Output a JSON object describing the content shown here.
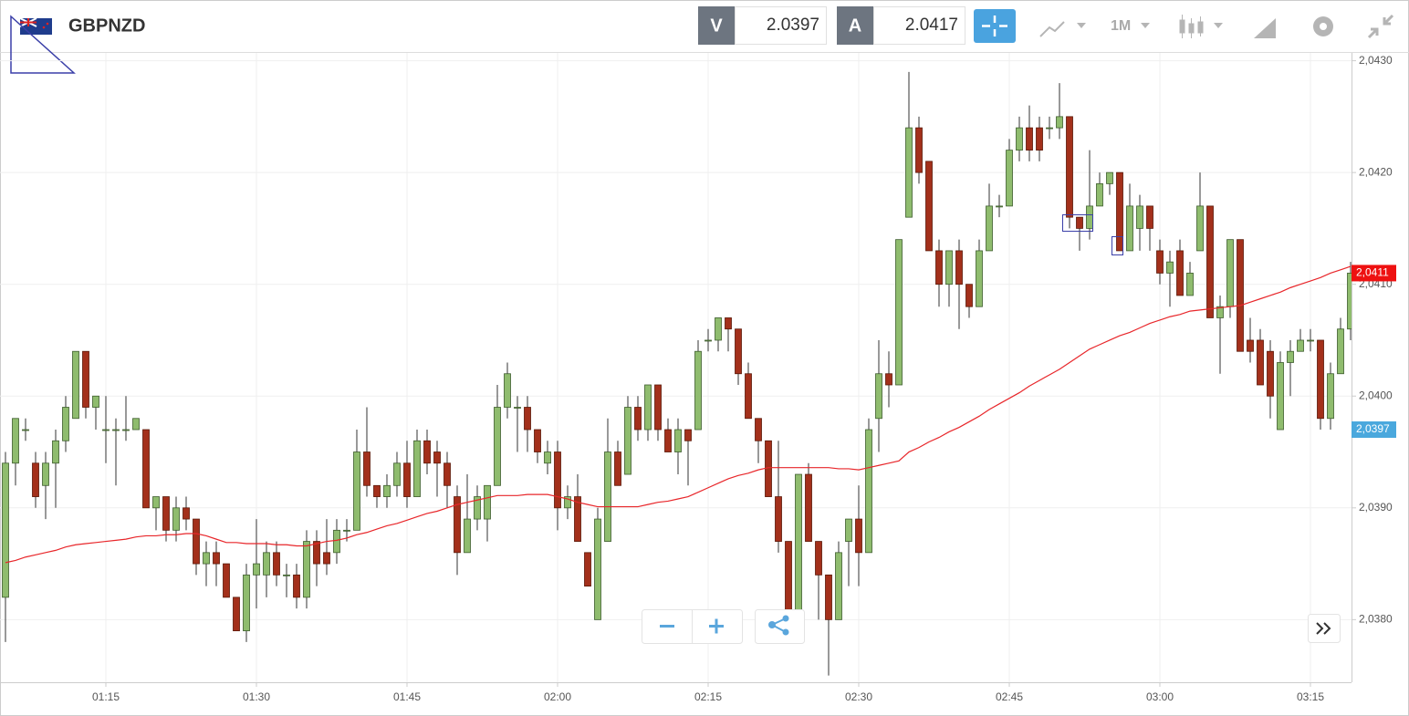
{
  "header": {
    "symbol": "GBPNZD",
    "bid_label": "V",
    "bid": 2.0397,
    "ask_label": "A",
    "ask": 2.0417,
    "timeframe": "1M"
  },
  "chart_data": {
    "type": "candlestick",
    "categories": [
      null,
      null,
      null,
      null,
      null,
      null,
      null,
      null,
      null,
      null,
      "01:15",
      null,
      null,
      null,
      null,
      null,
      null,
      null,
      null,
      null,
      null,
      null,
      null,
      null,
      null,
      "01:30",
      null,
      null,
      null,
      null,
      null,
      null,
      null,
      null,
      null,
      null,
      null,
      null,
      null,
      null,
      "01:45",
      null,
      null,
      null,
      null,
      null,
      null,
      null,
      null,
      null,
      null,
      null,
      null,
      null,
      null,
      "02:00",
      null,
      null,
      null,
      null,
      null,
      null,
      null,
      null,
      null,
      null,
      null,
      null,
      null,
      null,
      "02:15",
      null,
      null,
      null,
      null,
      null,
      null,
      null,
      null,
      null,
      null,
      null,
      null,
      null,
      null,
      "02:30",
      null,
      null,
      null,
      null,
      null,
      null,
      null,
      null,
      null,
      null,
      null,
      null,
      null,
      null,
      "02:45",
      null,
      null,
      null,
      null,
      null,
      null,
      null,
      null,
      null,
      null,
      null,
      null,
      null,
      null,
      "03:00",
      null,
      null,
      null,
      null,
      null,
      null,
      null,
      null,
      null,
      null,
      null,
      null,
      null,
      null,
      "03:15",
      null,
      null,
      null,
      null
    ],
    "open": [
      2.0382,
      2.0394,
      2.0397,
      2.0394,
      2.0392,
      2.0394,
      2.0396,
      2.0398,
      2.0404,
      2.0399,
      2.0397,
      2.0397,
      2.0397,
      2.0397,
      2.0397,
      2.039,
      2.0391,
      2.0388,
      2.039,
      2.0389,
      2.0385,
      2.0386,
      2.0385,
      2.0382,
      2.0379,
      2.0384,
      2.0384,
      2.0386,
      2.0384,
      2.0384,
      2.0382,
      2.0387,
      2.0386,
      2.0386,
      2.0388,
      2.0388,
      2.0395,
      2.0392,
      2.0391,
      2.0392,
      2.0394,
      2.0391,
      2.0396,
      2.0395,
      2.0394,
      2.0391,
      2.0386,
      2.0389,
      2.0389,
      2.0392,
      2.0399,
      2.0399,
      2.0399,
      2.0397,
      2.0394,
      2.0395,
      2.039,
      2.0391,
      2.0386,
      2.038,
      2.0387,
      2.0395,
      2.0393,
      2.0399,
      2.0397,
      2.0401,
      2.0397,
      2.0395,
      2.0397,
      2.0397,
      2.0405,
      2.0405,
      2.0407,
      2.0406,
      2.0402,
      2.0398,
      2.0396,
      2.0391,
      2.0387,
      2.038,
      2.0393,
      2.0387,
      2.0384,
      2.038,
      2.0387,
      2.0389,
      2.0386,
      2.0398,
      2.0402,
      2.0401,
      2.0416,
      2.0424,
      2.0421,
      2.0413,
      2.041,
      2.0413,
      2.041,
      2.0408,
      2.0413,
      2.0417,
      2.0417,
      2.0422,
      2.0424,
      2.0424,
      2.0424,
      2.0424,
      2.0425,
      2.0416,
      2.0415,
      2.0417,
      2.0419,
      2.042,
      2.0413,
      2.0415,
      2.0417,
      2.0413,
      2.0411,
      2.0413,
      2.0409,
      2.0413,
      2.0417,
      2.0407,
      2.0408,
      2.0414,
      2.0405,
      2.0405,
      2.0404,
      2.0397,
      2.0403,
      2.0404,
      2.0405,
      2.0405,
      2.0398,
      2.0402,
      2.0406
    ],
    "high": [
      2.0395,
      2.0398,
      2.0398,
      2.0395,
      2.0395,
      2.0397,
      2.04,
      2.0404,
      2.0404,
      2.04,
      2.04,
      2.0398,
      2.04,
      2.0398,
      2.0397,
      2.0391,
      2.0391,
      2.0391,
      2.0391,
      2.0389,
      2.0387,
      2.0387,
      2.0385,
      2.0382,
      2.0385,
      2.0389,
      2.0387,
      2.0387,
      2.0385,
      2.0385,
      2.0388,
      2.0388,
      2.0389,
      2.0389,
      2.0389,
      2.0397,
      2.0399,
      2.0392,
      2.0393,
      2.0395,
      2.0396,
      2.0397,
      2.0397,
      2.0396,
      2.0395,
      2.0392,
      2.0393,
      2.0392,
      2.0392,
      2.0401,
      2.0403,
      2.04,
      2.04,
      2.0397,
      2.0396,
      2.0396,
      2.0392,
      2.0393,
      2.0386,
      2.039,
      2.0398,
      2.0396,
      2.04,
      2.04,
      2.0401,
      2.0401,
      2.0398,
      2.0398,
      2.0397,
      2.0405,
      2.0406,
      2.0407,
      2.0407,
      2.0406,
      2.0403,
      2.0398,
      2.0396,
      2.0396,
      2.0387,
      2.0393,
      2.0394,
      2.0387,
      2.0384,
      2.0387,
      2.0389,
      2.0392,
      2.0398,
      2.0405,
      2.0404,
      2.0414,
      2.0429,
      2.0425,
      2.0421,
      2.0414,
      2.0413,
      2.0414,
      2.041,
      2.0414,
      2.0419,
      2.0418,
      2.0423,
      2.0425,
      2.0426,
      2.0425,
      2.0425,
      2.0428,
      2.0425,
      2.0416,
      2.0422,
      2.042,
      2.042,
      2.042,
      2.0419,
      2.0418,
      2.0417,
      2.0414,
      2.0413,
      2.0414,
      2.0412,
      2.042,
      2.0417,
      2.0409,
      2.0414,
      2.0414,
      2.0407,
      2.0406,
      2.0405,
      2.0404,
      2.0405,
      2.0406,
      2.0406,
      2.0405,
      2.0403,
      2.0407,
      2.0412
    ],
    "low": [
      2.0378,
      2.0392,
      2.0396,
      2.039,
      2.0389,
      2.039,
      2.0395,
      2.0398,
      2.0398,
      2.0397,
      2.0394,
      2.0392,
      2.0396,
      2.0397,
      2.039,
      2.0388,
      2.0387,
      2.0387,
      2.0388,
      2.0384,
      2.0383,
      2.0383,
      2.0382,
      2.0379,
      2.0378,
      2.0381,
      2.0382,
      2.0383,
      2.0382,
      2.0381,
      2.0381,
      2.0383,
      2.0384,
      2.0385,
      2.0387,
      2.0388,
      2.0391,
      2.039,
      2.039,
      2.0391,
      2.039,
      2.0391,
      2.0393,
      2.0391,
      2.039,
      2.0384,
      2.0386,
      2.0388,
      2.0387,
      2.0392,
      2.0398,
      2.0395,
      2.0395,
      2.0394,
      2.0393,
      2.0388,
      2.0389,
      2.0387,
      2.0383,
      2.038,
      2.0387,
      2.0392,
      2.0393,
      2.0396,
      2.0396,
      2.0396,
      2.0395,
      2.0393,
      2.0392,
      2.0397,
      2.0404,
      2.0404,
      2.0404,
      2.0401,
      2.0398,
      2.0394,
      2.0391,
      2.0386,
      2.0379,
      2.038,
      2.0387,
      2.038,
      2.0375,
      2.038,
      2.0383,
      2.0383,
      2.0386,
      2.0395,
      2.0399,
      2.0401,
      2.0416,
      2.0419,
      2.0413,
      2.0408,
      2.0408,
      2.0406,
      2.0407,
      2.0408,
      2.0413,
      2.0416,
      2.0417,
      2.0421,
      2.0421,
      2.0421,
      2.0423,
      2.0423,
      2.0415,
      2.0413,
      2.0414,
      2.0417,
      2.0418,
      2.0413,
      2.0413,
      2.0413,
      2.0413,
      2.041,
      2.0408,
      2.0409,
      2.0409,
      2.0413,
      2.0407,
      2.0402,
      2.0407,
      2.0404,
      2.0403,
      2.0401,
      2.0398,
      2.0397,
      2.04,
      2.0404,
      2.0404,
      2.0397,
      2.0397,
      2.0402,
      2.0405
    ],
    "close": [
      2.0394,
      2.0398,
      2.0397,
      2.0391,
      2.0394,
      2.0396,
      2.0399,
      2.0404,
      2.0399,
      2.04,
      2.0397,
      2.0397,
      2.0397,
      2.0398,
      2.039,
      2.0391,
      2.0388,
      2.039,
      2.0389,
      2.0385,
      2.0386,
      2.0385,
      2.0382,
      2.0379,
      2.0384,
      2.0385,
      2.0386,
      2.0384,
      2.0384,
      2.0382,
      2.0387,
      2.0385,
      2.0385,
      2.0388,
      2.0388,
      2.0395,
      2.0392,
      2.0391,
      2.0392,
      2.0394,
      2.0391,
      2.0396,
      2.0394,
      2.0394,
      2.0392,
      2.0386,
      2.0389,
      2.0391,
      2.0392,
      2.0399,
      2.0402,
      2.0399,
      2.0397,
      2.0395,
      2.0395,
      2.039,
      2.0391,
      2.0387,
      2.0383,
      2.0389,
      2.0395,
      2.0392,
      2.0399,
      2.0397,
      2.0401,
      2.0397,
      2.0395,
      2.0397,
      2.0396,
      2.0404,
      2.0405,
      2.0407,
      2.0406,
      2.0402,
      2.0398,
      2.0396,
      2.0391,
      2.0387,
      2.038,
      2.0393,
      2.0387,
      2.0384,
      2.038,
      2.0386,
      2.0389,
      2.0386,
      2.0397,
      2.0402,
      2.0401,
      2.0414,
      2.0424,
      2.042,
      2.0413,
      2.041,
      2.0413,
      2.041,
      2.0408,
      2.0413,
      2.0417,
      2.0417,
      2.0422,
      2.0424,
      2.0422,
      2.0422,
      2.0424,
      2.0425,
      2.0416,
      2.0415,
      2.0417,
      2.0419,
      2.042,
      2.0413,
      2.0417,
      2.0417,
      2.0415,
      2.0411,
      2.0412,
      2.0409,
      2.0411,
      2.0417,
      2.0407,
      2.0408,
      2.0414,
      2.0404,
      2.0404,
      2.0401,
      2.04,
      2.0403,
      2.0404,
      2.0405,
      2.0405,
      2.0398,
      2.0402,
      2.0406,
      2.0411
    ],
    "up_color": "#8fbc6e",
    "down_color": "#a3301b",
    "ma": {
      "color": "#e8262a",
      "values": [
        2.03851,
        2.03853,
        2.03856,
        2.03858,
        2.0386,
        2.03862,
        2.03865,
        2.03867,
        2.03868,
        2.03869,
        2.0387,
        2.03871,
        2.03872,
        2.03874,
        2.03875,
        2.03875,
        2.03876,
        2.03876,
        2.03877,
        2.03877,
        2.03875,
        2.03872,
        2.03869,
        2.03869,
        2.03868,
        2.03868,
        2.03868,
        2.03867,
        2.03867,
        2.03866,
        2.03866,
        2.03868,
        2.0387,
        2.03871,
        2.03873,
        2.03876,
        2.03878,
        2.03881,
        2.03884,
        2.03886,
        2.03889,
        2.03892,
        2.03895,
        2.03897,
        2.039,
        2.03903,
        2.03905,
        2.03907,
        2.03909,
        2.03911,
        2.03911,
        2.03911,
        2.03912,
        2.03912,
        2.03912,
        2.0391,
        2.03908,
        2.03905,
        2.03903,
        2.03901,
        2.03901,
        2.03901,
        2.03901,
        2.03901,
        2.03903,
        2.03905,
        2.03906,
        2.03908,
        2.0391,
        2.03914,
        2.03918,
        2.03922,
        2.03926,
        2.03929,
        2.03931,
        2.03934,
        2.03936,
        2.03936,
        2.03936,
        2.03936,
        2.03936,
        2.03936,
        2.03936,
        2.03935,
        2.03935,
        2.03934,
        2.03936,
        2.03938,
        2.0394,
        2.03942,
        2.0395,
        2.03954,
        2.03959,
        2.03963,
        2.03968,
        2.03972,
        2.03977,
        2.03982,
        2.03988,
        2.03993,
        2.03998,
        2.04003,
        2.04009,
        2.04014,
        2.04019,
        2.04024,
        2.0403,
        2.04036,
        2.04042,
        2.04046,
        2.0405,
        2.04054,
        2.04057,
        2.04061,
        2.04065,
        2.04068,
        2.04071,
        2.04073,
        2.04076,
        2.04077,
        2.04078,
        2.04079,
        2.0408,
        2.04081,
        2.04084,
        2.04087,
        2.0409,
        2.04093,
        2.04097,
        2.041,
        2.04103,
        2.04106,
        2.0411,
        2.04113,
        2.04116
      ]
    },
    "ylim": [
      2.03744,
      2.04307
    ],
    "yticks": [
      {
        "value": 2.038,
        "label": "2,0380"
      },
      {
        "value": 2.039,
        "label": "2,0390"
      },
      {
        "value": 2.04,
        "label": "2,0400"
      },
      {
        "value": 2.041,
        "label": "2,0410"
      },
      {
        "value": 2.042,
        "label": "2,0420"
      },
      {
        "value": 2.043,
        "label": "2,0430"
      }
    ],
    "grid": true,
    "price_tags": [
      {
        "value": 2.0411,
        "label": "2,0411",
        "color": "#ee1111"
      },
      {
        "value": 2.0397,
        "label": "2,0397",
        "color": "#4aa8dd"
      }
    ]
  }
}
